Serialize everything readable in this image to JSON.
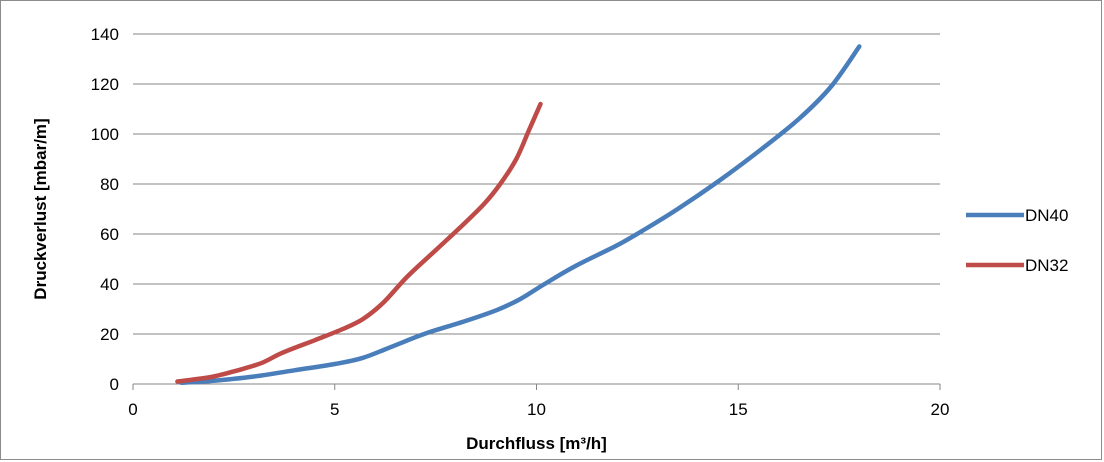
{
  "chart_data": {
    "type": "line",
    "title": "",
    "xlabel": "Durchfluss [m³/h]",
    "ylabel": "Druckverlust [mbar/m]",
    "xlim": [
      0,
      20
    ],
    "ylim": [
      0,
      140
    ],
    "x_ticks": [
      "0",
      "5",
      "10",
      "15",
      "20"
    ],
    "y_ticks": [
      "0",
      "20",
      "40",
      "60",
      "80",
      "100",
      "120",
      "140"
    ],
    "grid": "horizontal",
    "legend_position": "right",
    "series": [
      {
        "name": "DN40",
        "color": "#4a7ebb",
        "points": [
          [
            1.2,
            0.5
          ],
          [
            2,
            1.3
          ],
          [
            3,
            3
          ],
          [
            4,
            5.5
          ],
          [
            5,
            8
          ],
          [
            5.7,
            10.5
          ],
          [
            6.5,
            15.5
          ],
          [
            7.3,
            20.5
          ],
          [
            8.2,
            25
          ],
          [
            9,
            29.5
          ],
          [
            9.6,
            34
          ],
          [
            10.2,
            40
          ],
          [
            11,
            47.5
          ],
          [
            12,
            55.5
          ],
          [
            12.7,
            62
          ],
          [
            13.5,
            70
          ],
          [
            14.5,
            81
          ],
          [
            15.5,
            93
          ],
          [
            16.5,
            106
          ],
          [
            17.3,
            119
          ],
          [
            18,
            135
          ]
        ]
      },
      {
        "name": "DN32",
        "color": "#be4b48",
        "points": [
          [
            1.1,
            1
          ],
          [
            1.5,
            1.8
          ],
          [
            2,
            3
          ],
          [
            2.6,
            5.5
          ],
          [
            3.2,
            8.5
          ],
          [
            3.7,
            12.5
          ],
          [
            4.5,
            17.5
          ],
          [
            5.2,
            22
          ],
          [
            5.7,
            26
          ],
          [
            6.2,
            32.5
          ],
          [
            6.8,
            43
          ],
          [
            7.5,
            53.5
          ],
          [
            8.1,
            62.5
          ],
          [
            8.7,
            72
          ],
          [
            9.1,
            80
          ],
          [
            9.5,
            90
          ],
          [
            9.8,
            101
          ],
          [
            10.1,
            112
          ]
        ]
      }
    ]
  }
}
